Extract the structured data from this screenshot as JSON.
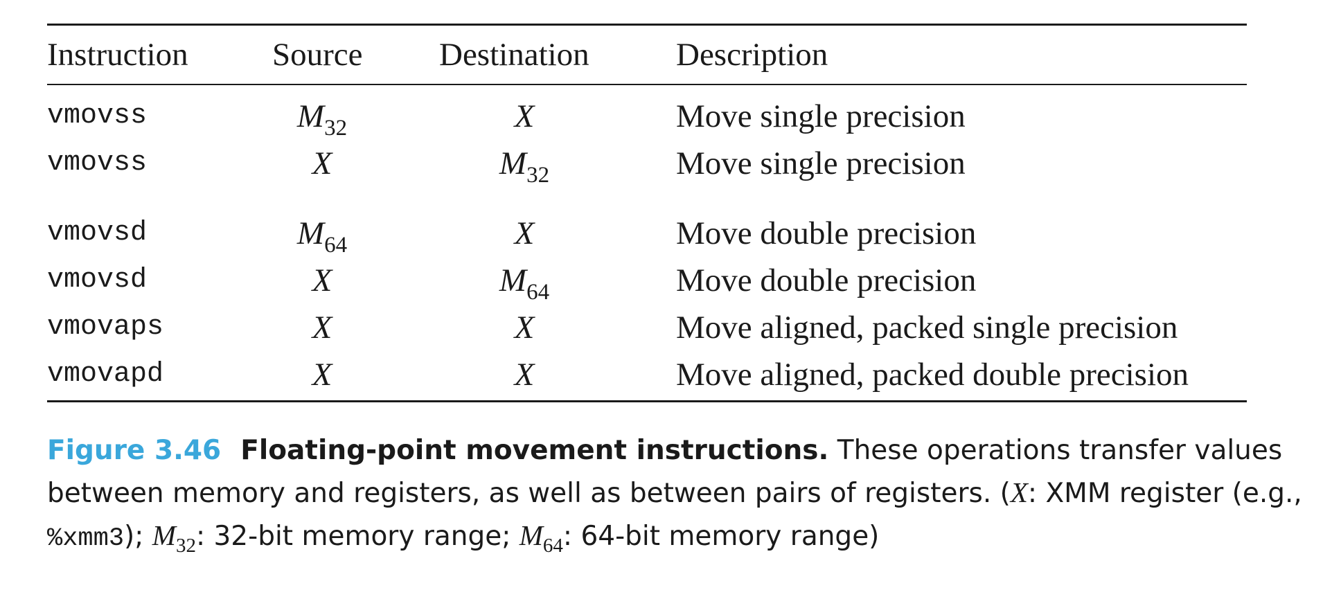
{
  "table": {
    "headers": [
      "Instruction",
      "Source",
      "Destination",
      "Description"
    ],
    "rows": [
      {
        "instruction": "vmovss",
        "source": {
          "sym": "M",
          "sub": "32"
        },
        "destination": {
          "sym": "X",
          "sub": ""
        },
        "description": "Move single precision"
      },
      {
        "instruction": "vmovss",
        "source": {
          "sym": "X",
          "sub": ""
        },
        "destination": {
          "sym": "M",
          "sub": "32"
        },
        "description": "Move single precision"
      },
      {
        "instruction": "vmovsd",
        "source": {
          "sym": "M",
          "sub": "64"
        },
        "destination": {
          "sym": "X",
          "sub": ""
        },
        "description": "Move double precision"
      },
      {
        "instruction": "vmovsd",
        "source": {
          "sym": "X",
          "sub": ""
        },
        "destination": {
          "sym": "M",
          "sub": "64"
        },
        "description": "Move double precision"
      },
      {
        "instruction": "vmovaps",
        "source": {
          "sym": "X",
          "sub": ""
        },
        "destination": {
          "sym": "X",
          "sub": ""
        },
        "description": "Move aligned, packed single precision"
      },
      {
        "instruction": "vmovapd",
        "source": {
          "sym": "X",
          "sub": ""
        },
        "destination": {
          "sym": "X",
          "sub": ""
        },
        "description": "Move aligned, packed double precision"
      }
    ]
  },
  "caption": {
    "number": "Figure 3.46",
    "title": "Floating-point movement instructions.",
    "text_1": " These operations transfer values between memory and registers, as well as between pairs of registers. (",
    "x_sym": "X",
    "text_2": ": XMM register (e.g., ",
    "reg_example": "%xmm3",
    "text_3": "); ",
    "m32_sym": "M",
    "m32_sub": "32",
    "text_4": ": 32-bit memory range; ",
    "m64_sym": "M",
    "m64_sub": "64",
    "text_5": ": 64-bit memory range)"
  },
  "colors": {
    "figure_number": "#3aa7db",
    "text": "#1a1a1a",
    "background": "#ffffff"
  }
}
